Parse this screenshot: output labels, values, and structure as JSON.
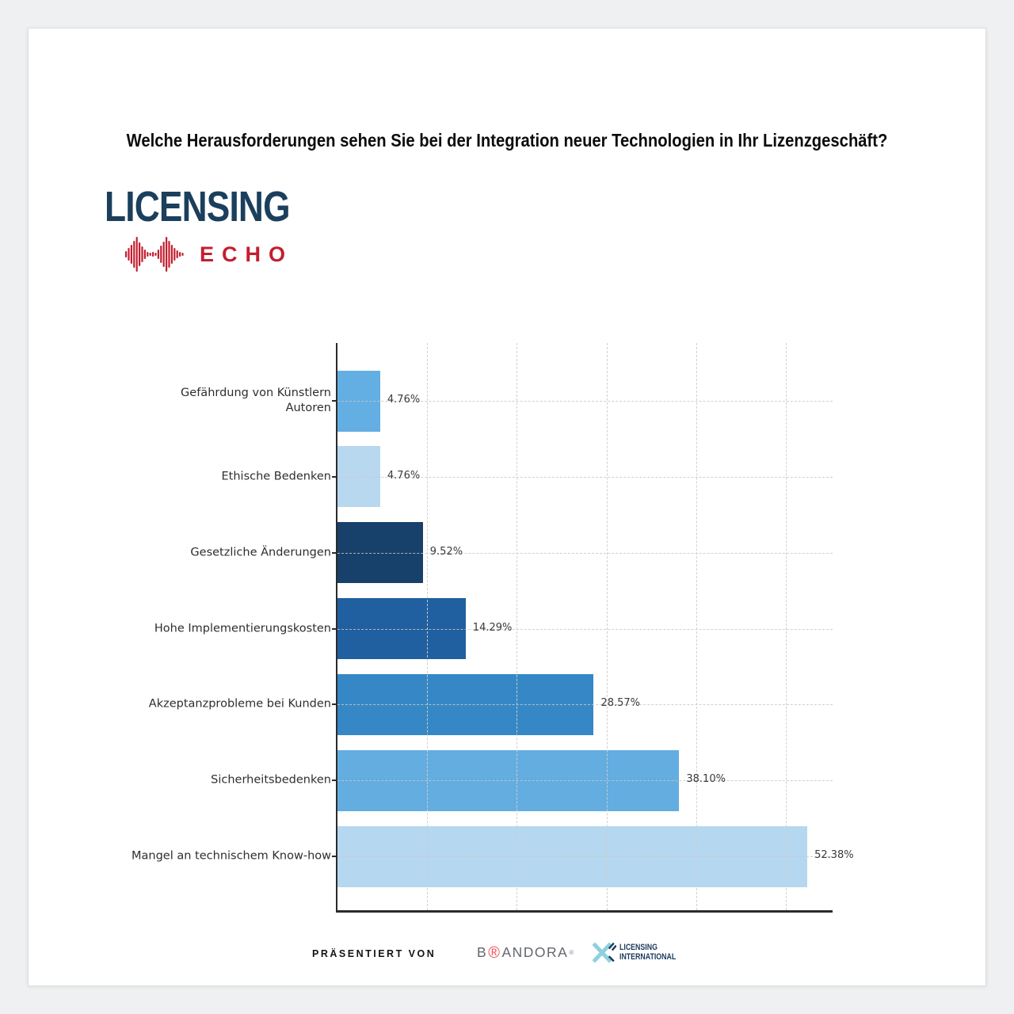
{
  "page": {
    "title": "Welche Herausforderungen sehen Sie bei der Integration neuer Technologien in Ihr Lizenzgeschäft?"
  },
  "logo": {
    "primary": "LICENSING",
    "secondary": "ECHO",
    "navy_color": "#1b3f5c",
    "red_color": "#c41e2f",
    "icon": "audio-waveform-icon"
  },
  "chart_data": {
    "type": "bar",
    "orientation": "horizontal",
    "title": "",
    "xlabel": "",
    "ylabel": "",
    "categories": [
      "Gefährdung von Künstlern\nAutoren",
      "Ethische Bedenken",
      "Gesetzliche Änderungen",
      "Hohe Implementierungskosten",
      "Akzeptanzprobleme bei Kunden",
      "Sicherheitsbedenken",
      "Mangel an technischem Know-how"
    ],
    "values": [
      4.76,
      4.76,
      9.52,
      14.29,
      28.57,
      38.1,
      52.38
    ],
    "value_labels": [
      "4.76%",
      "4.76%",
      "9.52%",
      "14.29%",
      "28.57%",
      "38.10%",
      "52.38%"
    ],
    "colors": [
      "#63aee3",
      "#b8d8f0",
      "#17406b",
      "#2060a0",
      "#3588c5",
      "#63ade0",
      "#b5d7f0"
    ],
    "xlim": [
      0,
      55.2
    ],
    "x_gridlines": [
      10,
      20,
      30,
      40,
      50
    ],
    "grid": "dashed, drawn above bars",
    "legend": "none"
  },
  "footer": {
    "presented_by": "PRÄSENTIERT VON",
    "brandora": {
      "prefix": "B",
      "at_symbol": "®",
      "suffix": "ANDORA",
      "registered": "®"
    },
    "licensing_international": {
      "line1": "LICENSING",
      "line2": "INTERNATIONAL"
    }
  }
}
